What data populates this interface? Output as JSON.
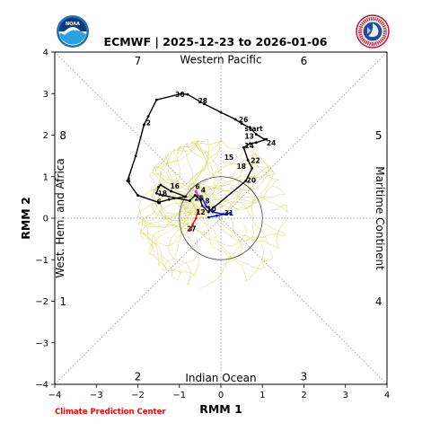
{
  "title": "ECMWF | 2025-12-23 to 2026-01-06",
  "credit": "Climate Prediction Center",
  "logos": {
    "noaa_text": "NOAA"
  },
  "chart_data": {
    "type": "line",
    "title": "ECMWF | 2025-12-23 to 2026-01-06",
    "xlabel": "RMM 1",
    "ylabel": "RMM 2",
    "xlim": [
      -4,
      4
    ],
    "ylim": [
      -4,
      4
    ],
    "xticks": [
      "−4",
      "−3",
      "−2",
      "−1",
      "0",
      "1",
      "2",
      "3",
      "4"
    ],
    "yticks": [
      "−4",
      "−3",
      "−2",
      "−1",
      "0",
      "1",
      "2",
      "3",
      "4"
    ],
    "grid": false,
    "regions": {
      "top": "Western Pacific",
      "bottom": "Indian Ocean",
      "left": "West. Hem. and Africa",
      "right": "Maritime Continent"
    },
    "phases": [
      {
        "label": "1",
        "x": -3.8,
        "y": -2.0
      },
      {
        "label": "2",
        "x": -2.0,
        "y": -3.8
      },
      {
        "label": "3",
        "x": 2.0,
        "y": -3.8
      },
      {
        "label": "4",
        "x": 3.8,
        "y": -2.0
      },
      {
        "label": "5",
        "x": 3.8,
        "y": 2.0
      },
      {
        "label": "6",
        "x": 2.0,
        "y": 3.8
      },
      {
        "label": "7",
        "x": -2.0,
        "y": 3.8
      },
      {
        "label": "8",
        "x": -3.8,
        "y": 2.0
      }
    ],
    "colors": {
      "observed": "#000000",
      "forecast_mean_1": "#ff00ff",
      "forecast_mean_2": "#0000ff",
      "forecast_mean_3": "#ff0000",
      "ensemble": "#d4d455"
    },
    "observed": [
      {
        "x": 1.05,
        "y": 1.9
      },
      {
        "x": 0.85,
        "y": 2.02
      },
      {
        "x": 0.7,
        "y": 2.18
      },
      {
        "x": 0.5,
        "y": 2.28
      },
      {
        "x": 0.35,
        "y": 2.38
      },
      {
        "x": 0.0,
        "y": 2.55
      },
      {
        "x": -0.4,
        "y": 2.75
      },
      {
        "x": -0.8,
        "y": 2.98
      },
      {
        "x": -0.95,
        "y": 3.0
      },
      {
        "x": -1.55,
        "y": 2.85
      },
      {
        "x": -1.75,
        "y": 2.45
      },
      {
        "x": -1.85,
        "y": 2.25
      },
      {
        "x": -2.05,
        "y": 1.5
      },
      {
        "x": -2.25,
        "y": 0.9
      },
      {
        "x": -2.0,
        "y": 0.55
      },
      {
        "x": -1.5,
        "y": 0.38
      },
      {
        "x": -1.25,
        "y": 0.45
      },
      {
        "x": -0.85,
        "y": 0.52
      },
      {
        "x": -1.2,
        "y": 0.65
      },
      {
        "x": -1.45,
        "y": 0.8
      },
      {
        "x": -1.5,
        "y": 0.75
      },
      {
        "x": -1.55,
        "y": 0.6
      },
      {
        "x": -1.4,
        "y": 0.55
      },
      {
        "x": -0.75,
        "y": 0.42
      },
      {
        "x": -0.62,
        "y": 0.55
      },
      {
        "x": -0.5,
        "y": 0.45
      },
      {
        "x": -0.45,
        "y": 0.3
      },
      {
        "x": -0.3,
        "y": 0.15
      },
      {
        "x": 0.6,
        "y": 0.9
      },
      {
        "x": 0.75,
        "y": 1.2
      },
      {
        "x": 0.65,
        "y": 1.4
      },
      {
        "x": 0.55,
        "y": 1.7
      },
      {
        "x": 0.7,
        "y": 1.8
      },
      {
        "x": 0.85,
        "y": 1.82
      },
      {
        "x": 1.1,
        "y": 1.9
      }
    ],
    "observed_labels": [
      {
        "text": "start",
        "x": 0.57,
        "y": 2.16
      },
      {
        "text": "13",
        "x": 0.57,
        "y": 1.98
      },
      {
        "text": "14",
        "x": 0.57,
        "y": 1.75
      },
      {
        "text": "24",
        "x": 1.1,
        "y": 1.82
      },
      {
        "text": "15",
        "x": 0.08,
        "y": 1.47
      },
      {
        "text": "22",
        "x": 0.72,
        "y": 1.4
      },
      {
        "text": "18",
        "x": 0.38,
        "y": 1.25
      },
      {
        "text": "20",
        "x": 0.62,
        "y": 0.92
      },
      {
        "text": "26",
        "x": 0.43,
        "y": 2.38
      },
      {
        "text": "28",
        "x": -0.55,
        "y": 2.83
      },
      {
        "text": "30",
        "x": -1.1,
        "y": 2.98
      },
      {
        "text": "2",
        "x": -1.8,
        "y": 2.3
      },
      {
        "text": "4",
        "x": -2.28,
        "y": 0.92
      },
      {
        "text": "16",
        "x": -1.22,
        "y": 0.78
      },
      {
        "text": "18",
        "x": -1.52,
        "y": 0.61
      },
      {
        "text": "6",
        "x": -1.55,
        "y": 0.4
      }
    ],
    "forecast_mean": [
      {
        "name": "",
        "color": "#ff00ff",
        "points": [
          {
            "x": -0.6,
            "y": 0.65
          },
          {
            "x": -0.55,
            "y": 0.55
          },
          {
            "x": -0.45,
            "y": 0.48
          }
        ]
      },
      {
        "name": "",
        "color": "#0000ff",
        "points": [
          {
            "x": -0.45,
            "y": 0.48
          },
          {
            "x": -0.35,
            "y": 0.28
          },
          {
            "x": -0.2,
            "y": 0.15
          },
          {
            "x": 0.05,
            "y": 0.1
          },
          {
            "x": 0.22,
            "y": 0.12
          },
          {
            "x": -0.1,
            "y": 0.06
          },
          {
            "x": -0.3,
            "y": 0.02
          }
        ]
      },
      {
        "name": "",
        "color": "#ff0000",
        "points": [
          {
            "x": -0.55,
            "y": 0.2
          },
          {
            "x": -0.6,
            "y": 0.0
          },
          {
            "x": -0.68,
            "y": -0.15
          },
          {
            "x": -0.72,
            "y": -0.28
          }
        ]
      }
    ],
    "forecast_labels": [
      {
        "text": "6",
        "x": -0.62,
        "y": 0.77
      },
      {
        "text": "4",
        "x": -0.48,
        "y": 0.68
      },
      {
        "text": "25",
        "x": -0.64,
        "y": 0.49
      },
      {
        "text": "8",
        "x": -0.38,
        "y": 0.42
      },
      {
        "text": "10",
        "x": -0.34,
        "y": 0.23
      },
      {
        "text": "12",
        "x": -0.6,
        "y": 0.15
      },
      {
        "text": "31",
        "x": 0.08,
        "y": 0.13
      },
      {
        "text": "27",
        "x": -0.82,
        "y": -0.25
      }
    ]
  }
}
